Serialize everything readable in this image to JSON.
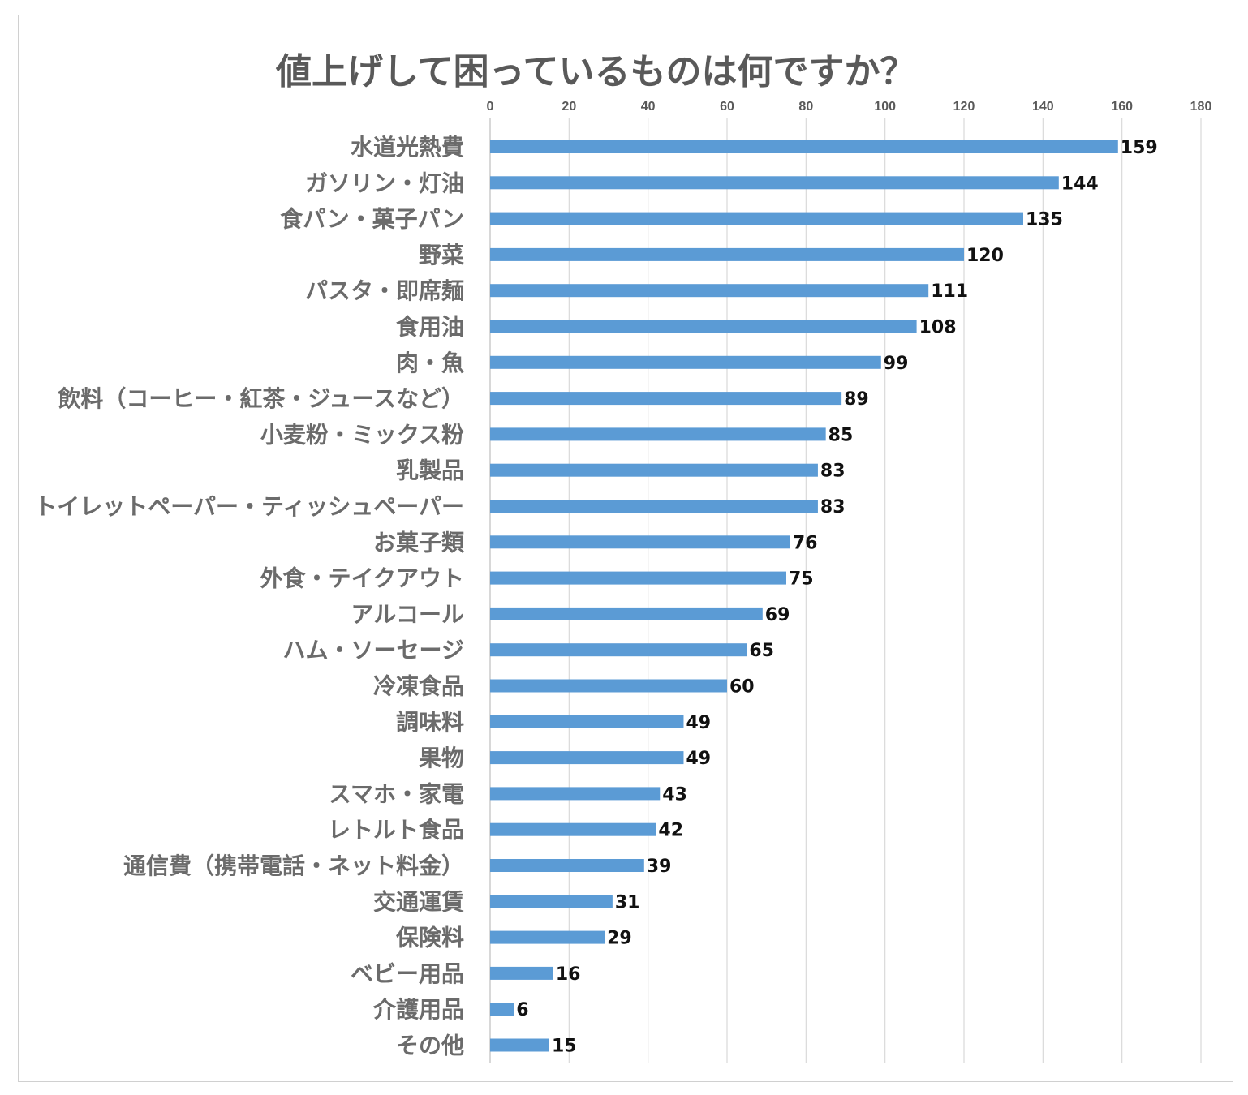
{
  "chart_data": {
    "type": "bar",
    "orientation": "horizontal",
    "title": "値上げして困っているものは何ですか？",
    "xlabel": "",
    "ylabel": "",
    "xlim": [
      0,
      180
    ],
    "ticks": [
      0,
      20,
      40,
      60,
      80,
      100,
      120,
      140,
      160,
      180
    ],
    "tick_position": "top",
    "grid": true,
    "bar_color": "#5B9BD5",
    "categories": [
      "水道光熱費",
      "ガソリン・灯油",
      "食パン・菓子パン",
      "野菜",
      "パスタ・即席麺",
      "食用油",
      "肉・魚",
      "飲料（コーヒー・紅茶・ジュースなど）",
      "小麦粉・ミックス粉",
      "乳製品",
      "トイレットペーパー・ティッシュペーパー",
      "お菓子類",
      "外食・テイクアウト",
      "アルコール",
      "ハム・ソーセージ",
      "冷凍食品",
      "調味料",
      "果物",
      "スマホ・家電",
      "レトルト食品",
      "通信費（携帯電話・ネット料金）",
      "交通運賃",
      "保険料",
      "ベビー用品",
      "介護用品",
      "その他"
    ],
    "values": [
      159,
      144,
      135,
      120,
      111,
      108,
      99,
      89,
      85,
      83,
      83,
      76,
      75,
      69,
      65,
      60,
      49,
      49,
      43,
      42,
      39,
      31,
      29,
      16,
      6,
      15
    ]
  }
}
